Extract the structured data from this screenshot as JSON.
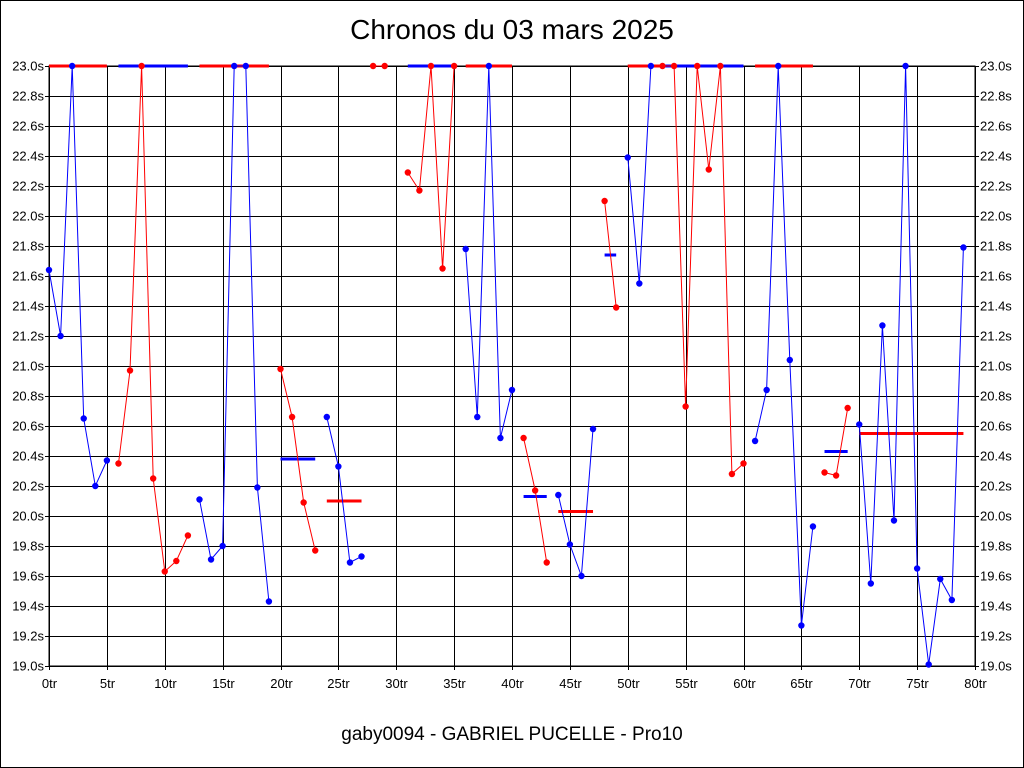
{
  "chart_data": {
    "type": "line",
    "title": "Chronos du 03 mars 2025",
    "footer": "gaby0094 - GABRIEL PUCELLE - Pro10",
    "xlim": [
      0,
      80
    ],
    "ylim": [
      19.0,
      23.0
    ],
    "x_ticks": [
      0,
      5,
      10,
      15,
      20,
      25,
      30,
      35,
      40,
      45,
      50,
      55,
      60,
      65,
      70,
      75,
      80
    ],
    "x_tick_labels": [
      "0tr",
      "5tr",
      "10tr",
      "15tr",
      "20tr",
      "25tr",
      "30tr",
      "35tr",
      "40tr",
      "45tr",
      "50tr",
      "55tr",
      "60tr",
      "65tr",
      "70tr",
      "75tr",
      "80tr"
    ],
    "y_ticks": [
      19.0,
      19.2,
      19.4,
      19.6,
      19.8,
      20.0,
      20.2,
      20.4,
      20.6,
      20.8,
      21.0,
      21.2,
      21.4,
      21.6,
      21.8,
      22.0,
      22.2,
      22.4,
      22.6,
      22.8,
      23.0
    ],
    "y_tick_labels": [
      "19.0s",
      "19.2s",
      "19.4s",
      "19.6s",
      "19.8s",
      "20.0s",
      "20.2s",
      "20.4s",
      "20.6s",
      "20.8s",
      "21.0s",
      "21.2s",
      "21.4s",
      "21.6s",
      "21.8s",
      "22.0s",
      "22.2s",
      "22.4s",
      "22.6s",
      "22.8s",
      "23.0s"
    ],
    "colors": {
      "red": "#ff0000",
      "blue": "#0000ff",
      "grid": "#000000"
    },
    "segments": [
      {
        "color": "blue",
        "points": [
          [
            0,
            21.64
          ],
          [
            1,
            21.2
          ],
          [
            2,
            23.0
          ],
          [
            3,
            20.65
          ],
          [
            4,
            20.2
          ],
          [
            5,
            20.37
          ]
        ]
      },
      {
        "color": "red",
        "points": [
          [
            6,
            20.35
          ],
          [
            7,
            20.97
          ],
          [
            8,
            23.0
          ],
          [
            9,
            20.25
          ],
          [
            10,
            19.63
          ],
          [
            11,
            19.7
          ],
          [
            12,
            19.87
          ]
        ]
      },
      {
        "color": "blue",
        "points": [
          [
            13,
            20.11
          ],
          [
            14,
            19.71
          ],
          [
            15,
            19.8
          ],
          [
            16,
            23.0
          ],
          [
            17,
            23.0
          ],
          [
            18,
            20.19
          ],
          [
            19,
            19.43
          ]
        ]
      },
      {
        "color": "red",
        "points": [
          [
            20,
            20.98
          ],
          [
            21,
            20.66
          ],
          [
            22,
            20.09
          ],
          [
            23,
            19.77
          ]
        ]
      },
      {
        "color": "blue",
        "points": [
          [
            24,
            20.66
          ],
          [
            25,
            20.33
          ],
          [
            26,
            19.69
          ],
          [
            27,
            19.73
          ]
        ]
      },
      {
        "color": "red",
        "points": [
          [
            28,
            23.0
          ],
          [
            29,
            23.0
          ]
        ]
      },
      {
        "color": "red",
        "points": [
          [
            31,
            22.29
          ],
          [
            32,
            22.17
          ],
          [
            33,
            23.0
          ],
          [
            34,
            21.65
          ],
          [
            35,
            23.0
          ]
        ]
      },
      {
        "color": "blue",
        "points": [
          [
            36,
            21.78
          ],
          [
            37,
            20.66
          ],
          [
            38,
            23.0
          ],
          [
            39,
            20.52
          ],
          [
            40,
            20.84
          ]
        ]
      },
      {
        "color": "red",
        "points": [
          [
            41,
            20.52
          ],
          [
            42,
            20.17
          ],
          [
            43,
            19.69
          ]
        ]
      },
      {
        "color": "blue",
        "points": [
          [
            44,
            20.14
          ],
          [
            45,
            19.81
          ],
          [
            46,
            19.6
          ],
          [
            47,
            20.58
          ]
        ]
      },
      {
        "color": "red",
        "points": [
          [
            48,
            22.1
          ],
          [
            49,
            21.39
          ]
        ]
      },
      {
        "color": "blue",
        "points": [
          [
            50,
            22.39
          ],
          [
            51,
            21.55
          ],
          [
            52,
            23.0
          ]
        ]
      },
      {
        "color": "red",
        "points": [
          [
            53,
            23.0
          ],
          [
            54,
            23.0
          ],
          [
            55,
            20.73
          ],
          [
            56,
            23.0
          ],
          [
            57,
            22.31
          ],
          [
            58,
            23.0
          ],
          [
            59,
            20.28
          ],
          [
            60,
            20.35
          ]
        ]
      },
      {
        "color": "blue",
        "points": [
          [
            61,
            20.5
          ],
          [
            62,
            20.84
          ],
          [
            63,
            23.0
          ],
          [
            64,
            21.04
          ],
          [
            65,
            19.27
          ],
          [
            66,
            19.93
          ]
        ]
      },
      {
        "color": "red",
        "points": [
          [
            67,
            20.29
          ],
          [
            68,
            20.27
          ],
          [
            69,
            20.72
          ]
        ]
      },
      {
        "color": "blue",
        "points": [
          [
            70,
            20.61
          ],
          [
            71,
            19.55
          ],
          [
            72,
            21.27
          ],
          [
            73,
            19.97
          ],
          [
            74,
            23.0
          ],
          [
            75,
            19.65
          ],
          [
            76,
            19.01
          ],
          [
            77,
            19.58
          ],
          [
            78,
            19.44
          ],
          [
            79,
            21.79
          ]
        ]
      }
    ],
    "average_bars": [
      {
        "color": "red",
        "from": 0,
        "to": 5,
        "value": 23.0
      },
      {
        "color": "blue",
        "from": 6,
        "to": 12,
        "value": 23.0
      },
      {
        "color": "red",
        "from": 13,
        "to": 19,
        "value": 23.0
      },
      {
        "color": "blue",
        "from": 20,
        "to": 23,
        "value": 20.38
      },
      {
        "color": "red",
        "from": 24,
        "to": 27,
        "value": 20.1
      },
      {
        "color": "blue",
        "from": 31,
        "to": 35,
        "value": 23.0
      },
      {
        "color": "red",
        "from": 36,
        "to": 40,
        "value": 23.0
      },
      {
        "color": "blue",
        "from": 41,
        "to": 43,
        "value": 20.13
      },
      {
        "color": "red",
        "from": 44,
        "to": 47,
        "value": 20.03
      },
      {
        "color": "blue",
        "from": 48,
        "to": 49,
        "value": 21.74
      },
      {
        "color": "red",
        "from": 50,
        "to": 53,
        "value": 23.0
      },
      {
        "color": "blue",
        "from": 53,
        "to": 60,
        "value": 23.0
      },
      {
        "color": "red",
        "from": 61,
        "to": 66,
        "value": 23.0
      },
      {
        "color": "blue",
        "from": 67,
        "to": 69,
        "value": 20.43
      },
      {
        "color": "red",
        "from": 70,
        "to": 79,
        "value": 20.55
      }
    ],
    "grid": true
  }
}
